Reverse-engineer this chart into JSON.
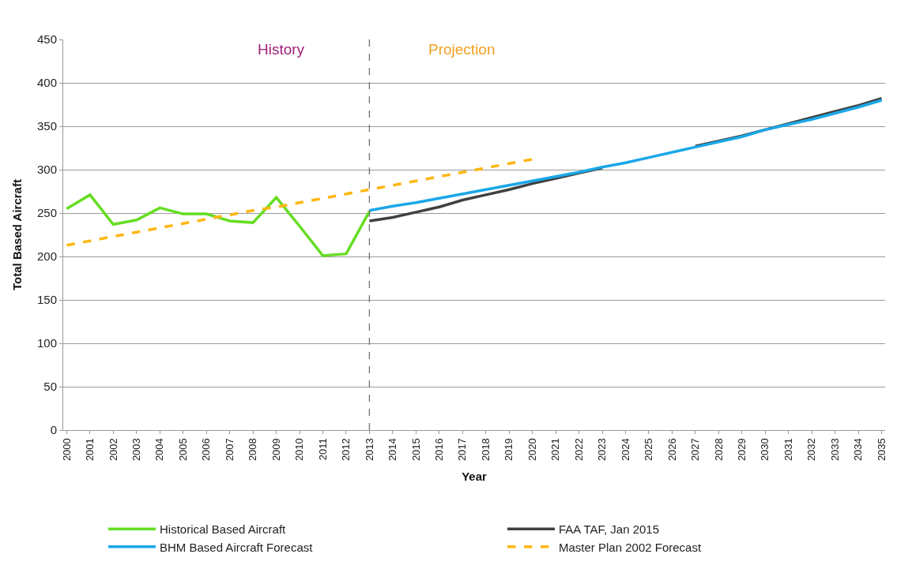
{
  "chart_data": {
    "type": "line",
    "xlabel": "Year",
    "ylabel": "Total Based Aircraft",
    "categories": [
      "2000",
      "2001",
      "2002",
      "2003",
      "2004",
      "2005",
      "2006",
      "2007",
      "2008",
      "2009",
      "2010",
      "2011",
      "2012",
      "2013",
      "2014",
      "2015",
      "2016",
      "2017",
      "2018",
      "2019",
      "2020",
      "2021",
      "2022",
      "2023",
      "2024",
      "2025",
      "2026",
      "2027",
      "2028",
      "2029",
      "2030",
      "2031",
      "2032",
      "2033",
      "2034",
      "2035"
    ],
    "series": [
      {
        "name": "Historical Based Aircraft",
        "color": "#66dd22",
        "values": [
          255,
          271,
          237,
          242,
          256,
          249,
          249,
          241,
          239,
          268,
          235,
          201,
          203,
          252,
          null,
          null,
          null,
          null,
          null,
          null,
          null,
          null,
          null,
          null,
          null,
          null,
          null,
          null,
          null,
          null,
          null,
          null,
          null,
          null,
          null,
          null
        ]
      },
      {
        "name": "FAA TAF, Jan 2015",
        "color": "#404040",
        "values": [
          null,
          null,
          null,
          null,
          null,
          null,
          null,
          null,
          null,
          null,
          null,
          null,
          null,
          241,
          245,
          251,
          257,
          265,
          271,
          277,
          284,
          290,
          296,
          302,
          null,
          null,
          null,
          327,
          333,
          339,
          346,
          353,
          360,
          367,
          374,
          382
        ]
      },
      {
        "name": "BHM Based Aircraft Forecast",
        "color": "#1aa7e8",
        "values": [
          null,
          null,
          null,
          null,
          null,
          null,
          null,
          null,
          null,
          null,
          null,
          null,
          null,
          253,
          258,
          262,
          267,
          272,
          277,
          282,
          287,
          292,
          297,
          303,
          308,
          314,
          320,
          326,
          332,
          338,
          346,
          352,
          358,
          365,
          372,
          380
        ]
      },
      {
        "name": "Master Plan 2002 Forecast",
        "color": "#ffb612",
        "line_style": "dashed",
        "values": [
          213,
          218,
          223,
          228,
          233,
          238,
          243,
          248,
          253,
          257,
          262,
          267,
          272,
          277,
          282,
          287,
          292,
          297,
          302,
          307,
          312,
          null,
          null,
          null,
          null,
          null,
          null,
          null,
          null,
          null,
          null,
          null,
          null,
          null,
          null,
          null
        ]
      }
    ],
    "ylim": [
      0,
      450
    ],
    "yticks": [
      0,
      50,
      100,
      150,
      200,
      250,
      300,
      350,
      400,
      450
    ],
    "grid": "y",
    "legend": "bottom",
    "marker": "none",
    "line_style": "solid",
    "ref_lines": [
      {
        "axis": "x",
        "value": "2013",
        "color": "#707070",
        "line_style": "dashed"
      }
    ],
    "annotations": [
      "History",
      "Projection"
    ]
  }
}
